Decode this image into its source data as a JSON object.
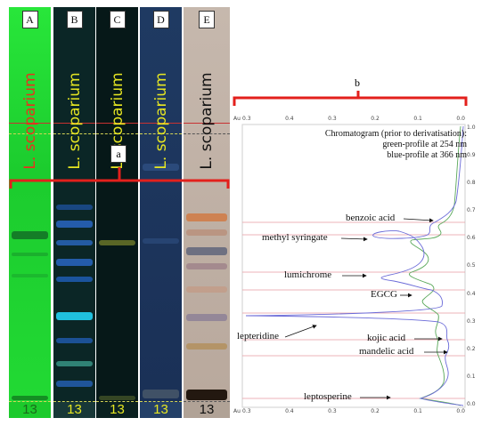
{
  "lanes": [
    {
      "letter": "A",
      "species": "L. scoparium",
      "number": "13",
      "bg": "#21e032",
      "species_color": "#e8321e",
      "number_color": "#1a6a1a"
    },
    {
      "letter": "B",
      "species": "L. scoparium",
      "number": "13",
      "bg": "#0a2424",
      "species_color": "#e6e622",
      "number_color": "#e6e622"
    },
    {
      "letter": "C",
      "species": "L. scoparium",
      "number": "13",
      "bg": "#051616",
      "species_color": "#e6e622",
      "number_color": "#e6e622"
    },
    {
      "letter": "D",
      "species": "L. scoparium",
      "number": "13",
      "bg": "#1c3358",
      "species_color": "#e6e622",
      "number_color": "#e6e622"
    },
    {
      "letter": "E",
      "species": "L. scoparium",
      "number": "13",
      "bg": "#c2b3a8",
      "species_color": "#111111",
      "number_color": "#111111"
    }
  ],
  "bracket_a": {
    "label": "a",
    "color": "#e3201c"
  },
  "bracket_b": {
    "label": "b",
    "color": "#e3201c"
  },
  "chromatogram": {
    "title_lines": [
      "Chromatogram (prior to derivatisation):",
      "green-profile at 254 nm",
      "blue-profile at 366 nm"
    ],
    "x_ticks": [
      "0.3",
      "0.4",
      "0.3",
      "0.2",
      "0.1",
      "0.0"
    ],
    "y_ticks": [
      "1.0",
      "0.9",
      "0.8",
      "0.7",
      "0.6",
      "0.5",
      "0.4",
      "0.3",
      "0.2",
      "0.1",
      "0.0"
    ],
    "corner_labels": {
      "top_left": "Au",
      "top_right": "Rf",
      "bottom_left": "Au",
      "bottom_right": "Rf"
    },
    "green_color": "#5aa85a",
    "blue_color": "#6a6ad8",
    "compounds": [
      {
        "name": "benzoic acid"
      },
      {
        "name": "methyl syringate"
      },
      {
        "name": "lumichrome"
      },
      {
        "name": "EGCG"
      },
      {
        "name": "lepteridine"
      },
      {
        "name": "kojic acid"
      },
      {
        "name": "mandelic acid"
      },
      {
        "name": "leptosperine"
      }
    ]
  }
}
